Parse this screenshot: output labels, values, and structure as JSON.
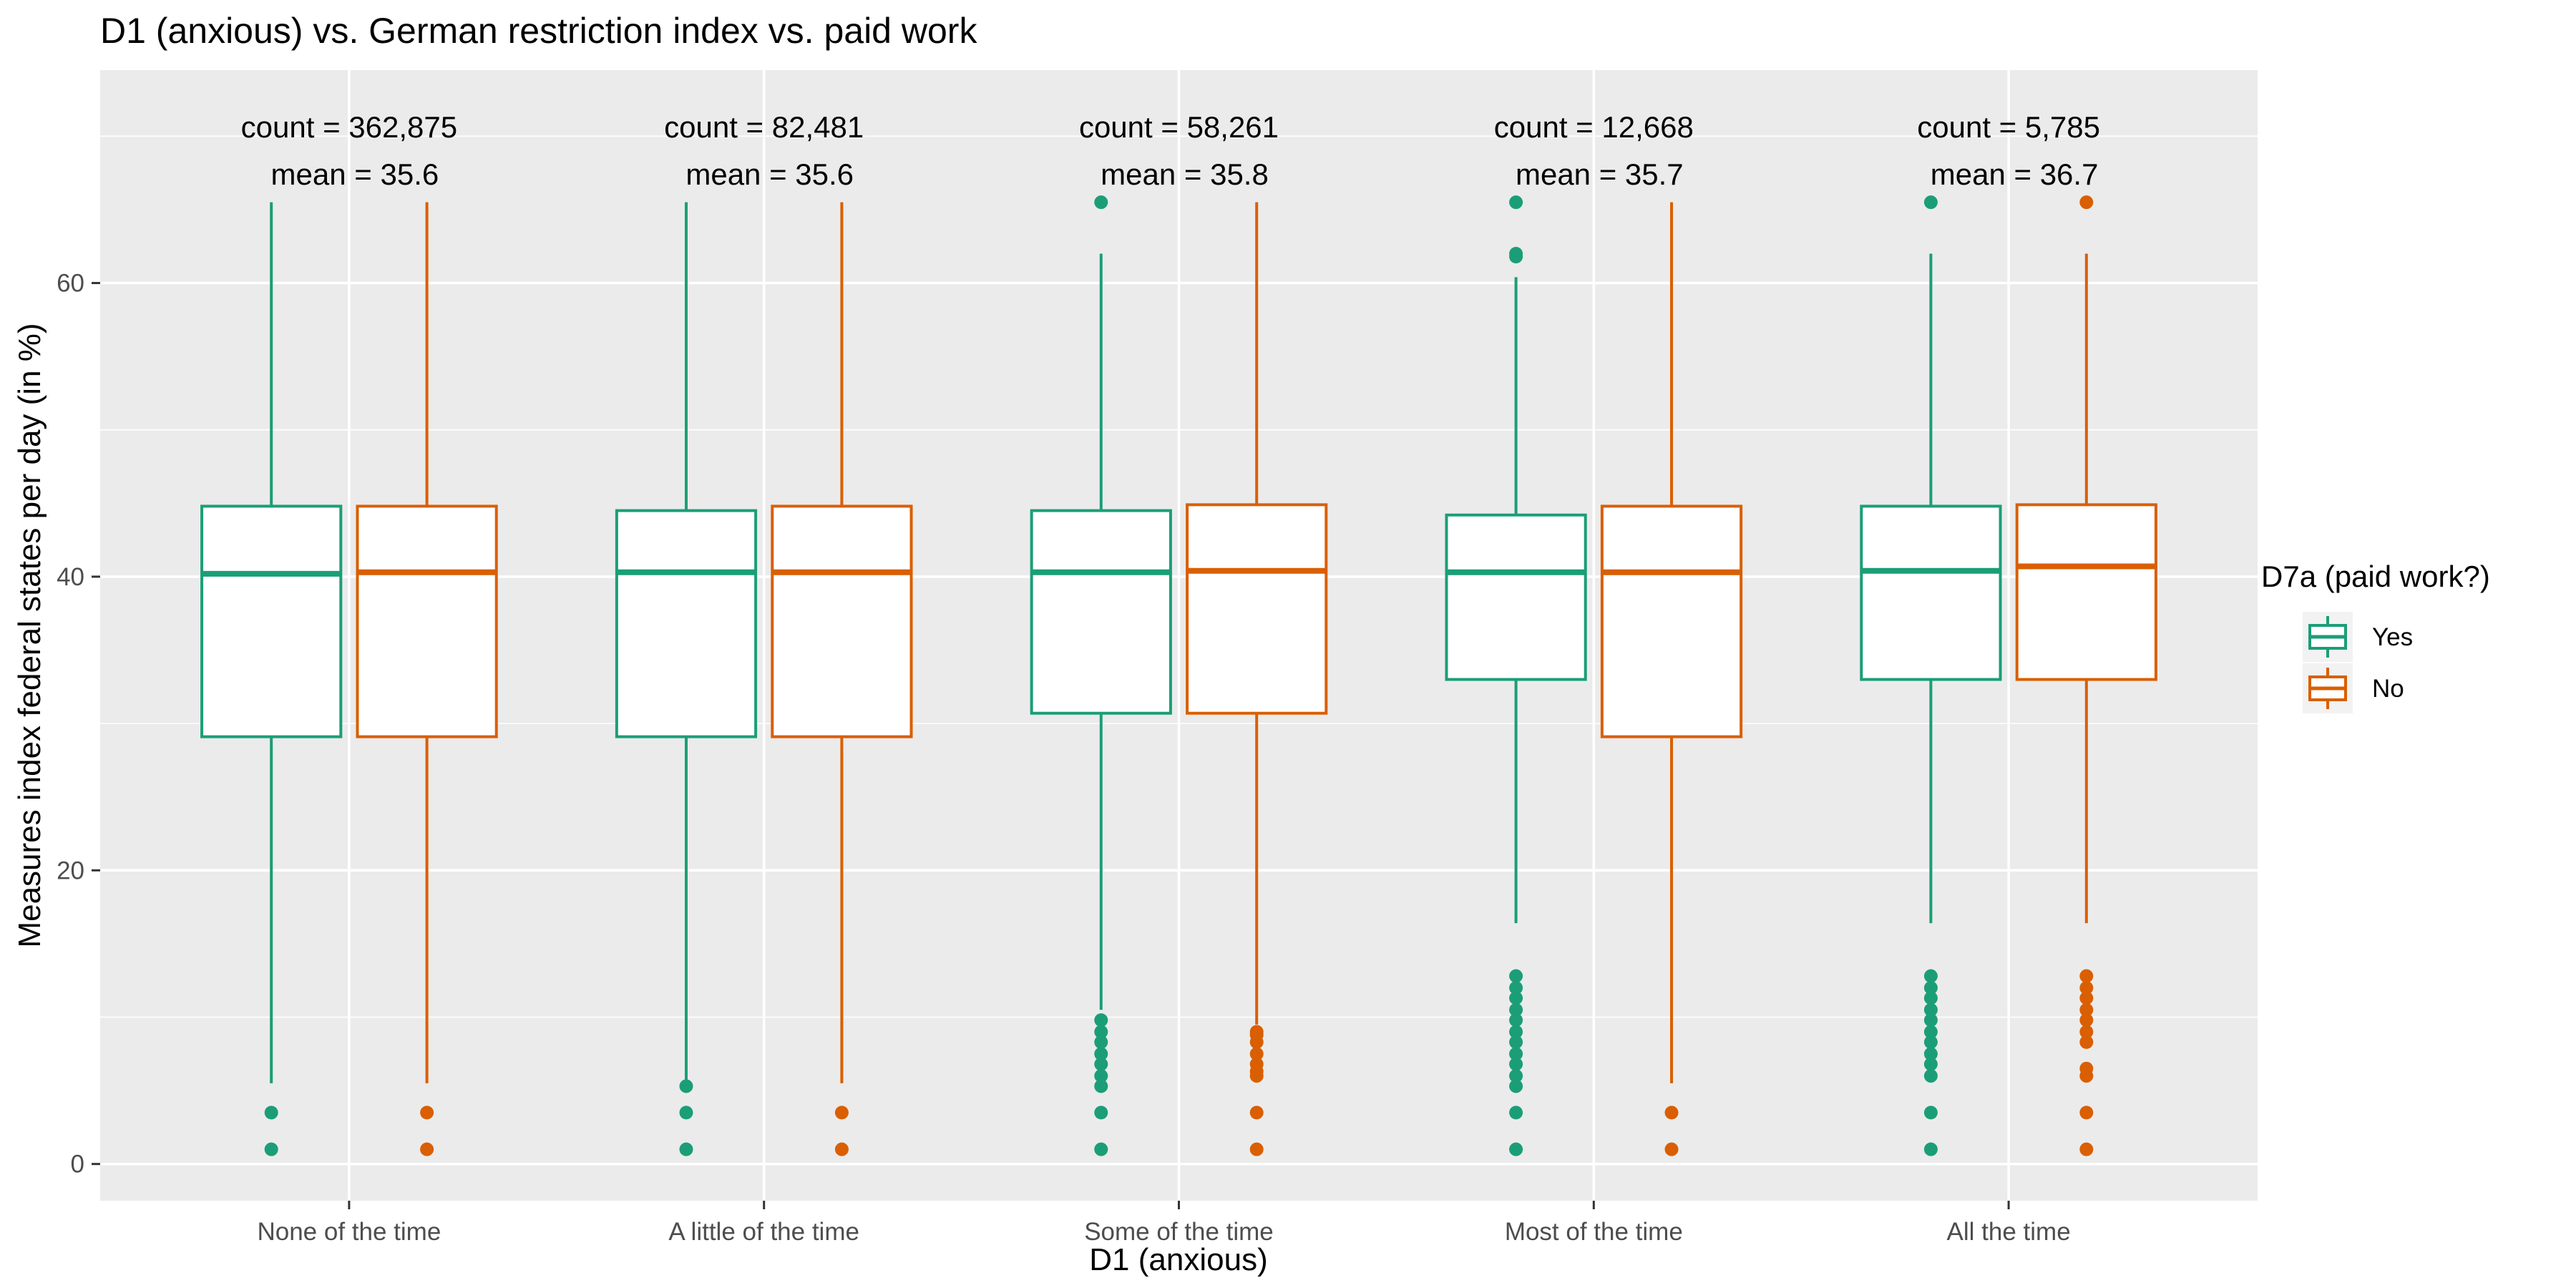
{
  "chart_data": {
    "type": "boxplot",
    "title": "D1 (anxious) vs. German restriction index vs. paid work",
    "xlabel": "D1 (anxious)",
    "ylabel": "Measures index federal states per day (in %)",
    "ylim": [
      -2.5,
      74.5
    ],
    "yticks": [
      0,
      20,
      40,
      60
    ],
    "grid": true,
    "legend_position": "right",
    "legend": {
      "title": "D7a (paid work?)",
      "entries": [
        "Yes",
        "No"
      ]
    },
    "categories": [
      "None of the time",
      "A little of the time",
      "Some of the time",
      "Most of the time",
      "All the time"
    ],
    "annotations": [
      {
        "count_label": "count = 362,875",
        "mean_label": "mean = 35.6"
      },
      {
        "count_label": "count = 82,481",
        "mean_label": "mean = 35.6"
      },
      {
        "count_label": "count = 58,261",
        "mean_label": "mean = 35.8"
      },
      {
        "count_label": "count = 12,668",
        "mean_label": "mean = 35.7"
      },
      {
        "count_label": "count = 5,785",
        "mean_label": "mean = 36.7"
      }
    ],
    "series": [
      {
        "name": "Yes",
        "color": "#1b9e77",
        "boxes": [
          {
            "q1": 29.1,
            "median": 40.2,
            "q3": 44.8,
            "whisker_low": 5.5,
            "whisker_high": 65.5,
            "outliers": [
              1.0,
              3.5
            ]
          },
          {
            "q1": 29.1,
            "median": 40.3,
            "q3": 44.5,
            "whisker_low": 5.5,
            "whisker_high": 65.5,
            "outliers": [
              1.0,
              3.5,
              5.3
            ]
          },
          {
            "q1": 30.7,
            "median": 40.3,
            "q3": 44.5,
            "whisker_low": 10.5,
            "whisker_high": 62.0,
            "outliers": [
              1.0,
              3.5,
              5.3,
              6.0,
              6.8,
              7.5,
              8.3,
              9.0,
              9.8,
              65.5
            ]
          },
          {
            "q1": 33.0,
            "median": 40.3,
            "q3": 44.2,
            "whisker_low": 16.4,
            "whisker_high": 60.4,
            "outliers": [
              1.0,
              3.5,
              5.3,
              6.0,
              6.8,
              7.5,
              8.3,
              9.0,
              9.8,
              10.5,
              11.3,
              12.0,
              12.8,
              61.8,
              62.0,
              65.5
            ]
          },
          {
            "q1": 33.0,
            "median": 40.4,
            "q3": 44.8,
            "whisker_low": 16.4,
            "whisker_high": 62.0,
            "outliers": [
              1.0,
              3.5,
              6.0,
              6.8,
              7.5,
              8.3,
              9.0,
              9.8,
              10.5,
              11.3,
              12.0,
              12.8,
              65.5
            ]
          }
        ]
      },
      {
        "name": "No",
        "color": "#d95f02",
        "boxes": [
          {
            "q1": 29.1,
            "median": 40.3,
            "q3": 44.8,
            "whisker_low": 5.5,
            "whisker_high": 65.5,
            "outliers": [
              1.0,
              3.5
            ]
          },
          {
            "q1": 29.1,
            "median": 40.3,
            "q3": 44.8,
            "whisker_low": 5.5,
            "whisker_high": 65.5,
            "outliers": [
              1.0,
              3.5
            ]
          },
          {
            "q1": 30.7,
            "median": 40.4,
            "q3": 44.9,
            "whisker_low": 9.5,
            "whisker_high": 65.5,
            "outliers": [
              1.0,
              3.5,
              6.0,
              6.3,
              6.8,
              7.5,
              8.3,
              8.8,
              9.0
            ]
          },
          {
            "q1": 29.1,
            "median": 40.3,
            "q3": 44.8,
            "whisker_low": 5.5,
            "whisker_high": 65.5,
            "outliers": [
              1.0,
              3.5
            ]
          },
          {
            "q1": 33.0,
            "median": 40.7,
            "q3": 44.9,
            "whisker_low": 16.4,
            "whisker_high": 62.0,
            "outliers": [
              1.0,
              3.5,
              6.0,
              6.5,
              8.3,
              9.0,
              9.8,
              10.5,
              11.3,
              12.0,
              12.8,
              65.5
            ]
          }
        ]
      }
    ]
  }
}
